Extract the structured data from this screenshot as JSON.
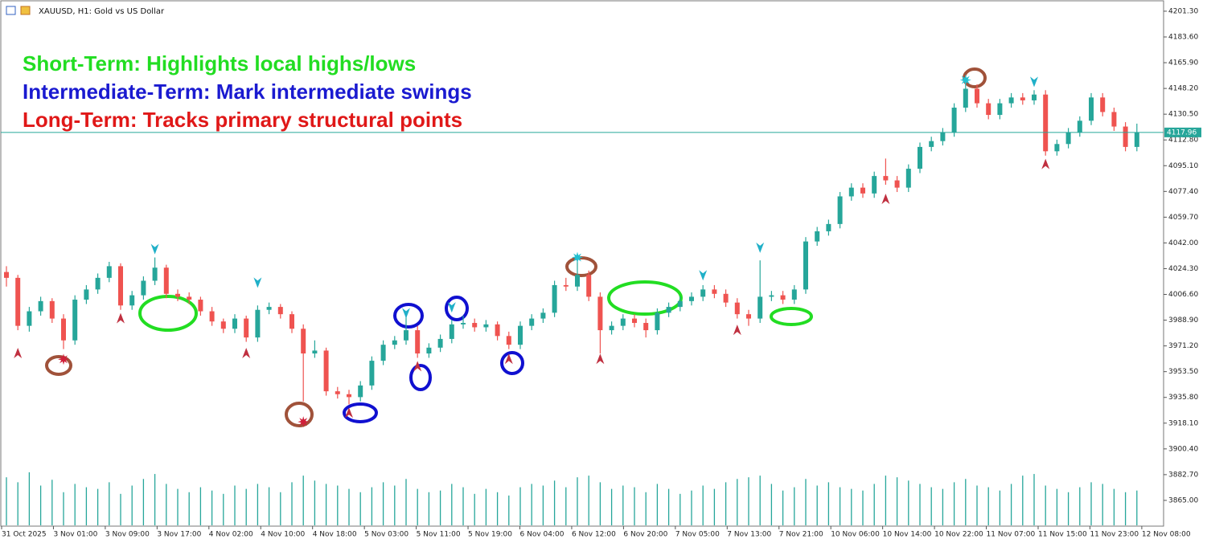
{
  "chart_data": {
    "type": "candlestick",
    "title": "XAUUSD, H1:  Gold vs US Dollar",
    "annotations": [
      {
        "text": "Short-Term: Highlights local highs/lows",
        "color": "#22dd22"
      },
      {
        "text": "Intermediate-Term: Mark intermediate swings",
        "color": "#1a1ad0"
      },
      {
        "text": "Long-Term: Tracks primary structural points",
        "color": "#e01818"
      }
    ],
    "up_color": "#26a69a",
    "down_color": "#ef5350",
    "volume_color": "#26a69a",
    "ylim": [
      3847.3,
      4209.0
    ],
    "yticks": [
      {
        "value": 4201.3,
        "label": "4201.30"
      },
      {
        "value": 4183.6,
        "label": "4183.60"
      },
      {
        "value": 4165.9,
        "label": "4165.90"
      },
      {
        "value": 4148.2,
        "label": "4148.20"
      },
      {
        "value": 4130.5,
        "label": "4130.50"
      },
      {
        "value": 4112.8,
        "label": "4112.80"
      },
      {
        "value": 4095.1,
        "label": "4095.10"
      },
      {
        "value": 4077.4,
        "label": "4077.40"
      },
      {
        "value": 4059.7,
        "label": "4059.70"
      },
      {
        "value": 4042,
        "label": "4042.00"
      },
      {
        "value": 4024.3,
        "label": "4024.30"
      },
      {
        "value": 4006.6,
        "label": "4006.60"
      },
      {
        "value": 3988.9,
        "label": "3988.90"
      },
      {
        "value": 3971.2,
        "label": "3971.20"
      },
      {
        "value": 3953.5,
        "label": "3953.50"
      },
      {
        "value": 3935.8,
        "label": "3935.80"
      },
      {
        "value": 3918.1,
        "label": "3918.10"
      },
      {
        "value": 3900.4,
        "label": "3900.40"
      },
      {
        "value": 3882.7,
        "label": "3882.70"
      },
      {
        "value": 3865,
        "label": "3865.00"
      }
    ],
    "current_price": {
      "value": 4117.96,
      "label": "4117.96"
    },
    "time_labels": [
      "31 Oct 2025",
      "3 Nov 01:00",
      "3 Nov 09:00",
      "3 Nov 17:00",
      "4 Nov 02:00",
      "4 Nov 10:00",
      "4 Nov 18:00",
      "5 Nov 03:00",
      "5 Nov 11:00",
      "5 Nov 19:00",
      "6 Nov 04:00",
      "6 Nov 12:00",
      "6 Nov 20:00",
      "7 Nov 05:00",
      "7 Nov 13:00",
      "7 Nov 21:00",
      "10 Nov 06:00",
      "10 Nov 14:00",
      "10 Nov 22:00",
      "11 Nov 07:00",
      "11 Nov 15:00",
      "11 Nov 23:00",
      "12 Nov 08:00"
    ],
    "candles": [
      [
        4022,
        4026,
        4012,
        4018
      ],
      [
        4018,
        4020,
        3982,
        3985
      ],
      [
        3985,
        3998,
        3981,
        3995
      ],
      [
        3995,
        4005,
        3992,
        4002
      ],
      [
        4002,
        4004,
        3987,
        3990
      ],
      [
        3990,
        3993,
        3969,
        3975
      ],
      [
        3975,
        4006,
        3972,
        4003
      ],
      [
        4003,
        4013,
        4000,
        4010
      ],
      [
        4010,
        4021,
        4007,
        4018
      ],
      [
        4018,
        4029,
        4015,
        4026
      ],
      [
        4026,
        4028,
        3996,
        3999
      ],
      [
        3999,
        4009,
        3996,
        4006
      ],
      [
        4006,
        4019,
        4003,
        4016
      ],
      [
        4016,
        4032,
        4013,
        4025
      ],
      [
        4025,
        4027,
        4004,
        4007
      ],
      [
        4007,
        4010,
        4002,
        4005
      ],
      [
        4005,
        4008,
        4000,
        4003
      ],
      [
        4003,
        4005,
        3992,
        3995
      ],
      [
        3995,
        3998,
        3985,
        3988
      ],
      [
        3988,
        3990,
        3980,
        3983
      ],
      [
        3983,
        3993,
        3980,
        3990
      ],
      [
        3990,
        3992,
        3974,
        3977
      ],
      [
        3977,
        3999,
        3974,
        3996
      ],
      [
        3996,
        4001,
        3993,
        3998
      ],
      [
        3998,
        4000,
        3990,
        3993
      ],
      [
        3993,
        3995,
        3980,
        3983
      ],
      [
        3983,
        3986,
        3933,
        3966
      ],
      [
        3966,
        3975,
        3963,
        3968
      ],
      [
        3968,
        3970,
        3937,
        3940
      ],
      [
        3940,
        3943,
        3935,
        3938
      ],
      [
        3938,
        3941,
        3931,
        3936
      ],
      [
        3936,
        3947,
        3933,
        3944
      ],
      [
        3944,
        3964,
        3941,
        3961
      ],
      [
        3961,
        3975,
        3958,
        3972
      ],
      [
        3972,
        3978,
        3969,
        3975
      ],
      [
        3975,
        3992,
        3972,
        3982
      ],
      [
        3982,
        3985,
        3963,
        3966
      ],
      [
        3966,
        3973,
        3963,
        3970
      ],
      [
        3970,
        3979,
        3967,
        3976
      ],
      [
        3976,
        3989,
        3973,
        3986
      ],
      [
        3986,
        3992,
        3983,
        3987
      ],
      [
        3987,
        3990,
        3981,
        3984
      ],
      [
        3984,
        3989,
        3981,
        3986
      ],
      [
        3986,
        3988,
        3975,
        3978
      ],
      [
        3978,
        3981,
        3969,
        3972
      ],
      [
        3972,
        3988,
        3969,
        3985
      ],
      [
        3985,
        3993,
        3982,
        3990
      ],
      [
        3990,
        3997,
        3987,
        3994
      ],
      [
        3994,
        4016,
        3991,
        4013
      ],
      [
        4013,
        4018,
        4009,
        4012
      ],
      [
        4012,
        4030,
        4009,
        4020
      ],
      [
        4020,
        4023,
        4002,
        4005
      ],
      [
        4005,
        4008,
        3966,
        3982
      ],
      [
        3982,
        3988,
        3979,
        3985
      ],
      [
        3985,
        3993,
        3982,
        3990
      ],
      [
        3990,
        3993,
        3984,
        3987
      ],
      [
        3987,
        3990,
        3977,
        3982
      ],
      [
        3982,
        3997,
        3979,
        3994
      ],
      [
        3994,
        4001,
        3991,
        3998
      ],
      [
        3998,
        4005,
        3995,
        4002
      ],
      [
        4002,
        4008,
        3999,
        4005
      ],
      [
        4005,
        4013,
        4002,
        4010
      ],
      [
        4010,
        4013,
        4004,
        4007
      ],
      [
        4007,
        4010,
        3998,
        4001
      ],
      [
        4001,
        4004,
        3990,
        3993
      ],
      [
        3993,
        3996,
        3985,
        3990
      ],
      [
        3990,
        4030,
        3987,
        4005
      ],
      [
        4005,
        4009,
        4002,
        4006
      ],
      [
        4006,
        4009,
        4000,
        4003
      ],
      [
        4003,
        4013,
        4000,
        4010
      ],
      [
        4010,
        4046,
        4007,
        4043
      ],
      [
        4043,
        4053,
        4040,
        4050
      ],
      [
        4050,
        4058,
        4047,
        4055
      ],
      [
        4055,
        4077,
        4052,
        4074
      ],
      [
        4074,
        4083,
        4071,
        4080
      ],
      [
        4080,
        4083,
        4073,
        4076
      ],
      [
        4076,
        4091,
        4073,
        4088
      ],
      [
        4088,
        4100,
        4082,
        4085
      ],
      [
        4085,
        4088,
        4077,
        4080
      ],
      [
        4080,
        4096,
        4077,
        4093
      ],
      [
        4093,
        4111,
        4090,
        4108
      ],
      [
        4108,
        4115,
        4105,
        4112
      ],
      [
        4112,
        4121,
        4109,
        4118
      ],
      [
        4118,
        4138,
        4115,
        4135
      ],
      [
        4135,
        4151,
        4132,
        4148
      ],
      [
        4148,
        4151,
        4135,
        4138
      ],
      [
        4138,
        4141,
        4127,
        4130
      ],
      [
        4130,
        4141,
        4127,
        4138
      ],
      [
        4138,
        4145,
        4135,
        4142
      ],
      [
        4142,
        4145,
        4137,
        4140
      ],
      [
        4140,
        4147,
        4137,
        4144
      ],
      [
        4144,
        4147,
        4102,
        4105
      ],
      [
        4105,
        4113,
        4102,
        4110
      ],
      [
        4110,
        4121,
        4107,
        4118
      ],
      [
        4118,
        4129,
        4115,
        4126
      ],
      [
        4126,
        4145,
        4123,
        4142
      ],
      [
        4142,
        4145,
        4129,
        4132
      ],
      [
        4132,
        4135,
        4119,
        4122
      ],
      [
        4122,
        4125,
        4105,
        4108
      ],
      [
        4108,
        4124,
        4105,
        4118
      ]
    ],
    "volumes": [
      58,
      52,
      64,
      48,
      55,
      40,
      50,
      46,
      44,
      52,
      38,
      48,
      56,
      62,
      50,
      44,
      40,
      46,
      42,
      38,
      48,
      44,
      50,
      46,
      40,
      52,
      60,
      54,
      50,
      48,
      44,
      40,
      46,
      52,
      48,
      56,
      44,
      40,
      42,
      50,
      46,
      38,
      44,
      40,
      36,
      46,
      50,
      48,
      54,
      46,
      58,
      60,
      52,
      44,
      48,
      46,
      40,
      50,
      44,
      38,
      42,
      48,
      44,
      52,
      56,
      58,
      60,
      50,
      42,
      46,
      56,
      48,
      52,
      46,
      44,
      42,
      50,
      60,
      58,
      54,
      50,
      46,
      44,
      52,
      56,
      48,
      46,
      42,
      50,
      60,
      62,
      48,
      44,
      40,
      46,
      52,
      50,
      44,
      40,
      42
    ],
    "signals": [
      {
        "index": 5,
        "price": 3962,
        "kind": "star-red"
      },
      {
        "index": 26,
        "price": 3919,
        "kind": "star-red"
      },
      {
        "index": 50,
        "price": 4032,
        "kind": "star-cyan"
      },
      {
        "index": 84,
        "price": 4154,
        "kind": "star-cyan"
      },
      {
        "index": 1,
        "price": 3966,
        "kind": "arrow-up"
      },
      {
        "index": 10,
        "price": 3990,
        "kind": "arrow-up"
      },
      {
        "index": 21,
        "price": 3966,
        "kind": "arrow-up"
      },
      {
        "index": 30,
        "price": 3925,
        "kind": "arrow-up"
      },
      {
        "index": 36,
        "price": 3957,
        "kind": "arrow-up"
      },
      {
        "index": 44,
        "price": 3962,
        "kind": "arrow-up"
      },
      {
        "index": 52,
        "price": 3962,
        "kind": "arrow-up"
      },
      {
        "index": 64,
        "price": 3982,
        "kind": "arrow-up"
      },
      {
        "index": 77,
        "price": 4072,
        "kind": "arrow-up"
      },
      {
        "index": 91,
        "price": 4096,
        "kind": "arrow-up"
      },
      {
        "index": 13,
        "price": 4038,
        "kind": "arrow-down"
      },
      {
        "index": 22,
        "price": 4015,
        "kind": "arrow-down"
      },
      {
        "index": 35,
        "price": 3994,
        "kind": "arrow-down"
      },
      {
        "index": 39,
        "price": 3998,
        "kind": "arrow-down"
      },
      {
        "index": 61,
        "price": 4020,
        "kind": "arrow-down"
      },
      {
        "index": 66,
        "price": 4039,
        "kind": "arrow-down"
      },
      {
        "index": 90,
        "price": 4153,
        "kind": "arrow-down"
      }
    ]
  }
}
